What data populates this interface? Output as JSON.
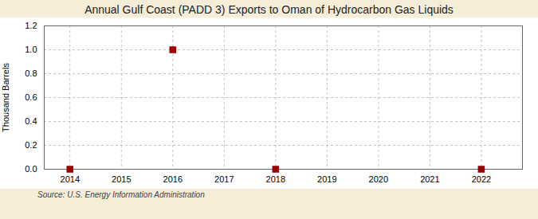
{
  "chart_data": {
    "type": "scatter",
    "title": "Annual Gulf Coast (PADD 3) Exports to Oman of Hydrocarbon Gas Liquids",
    "ylabel": "Thousand Barrels",
    "source": "Source: U.S. Energy Information Administration",
    "x": [
      2014,
      2016,
      2018,
      2022
    ],
    "values": [
      0.0,
      1.0,
      0.0,
      0.0
    ],
    "color": "#990000",
    "marker": "square",
    "xlim": [
      2013.5,
      2022.8
    ],
    "ylim": [
      0.0,
      1.2
    ],
    "xticks": [
      2014,
      2015,
      2016,
      2017,
      2018,
      2019,
      2020,
      2021,
      2022
    ],
    "yticks": [
      {
        "value": 0.0,
        "label": "0.0"
      },
      0.2,
      0.4,
      0.6,
      0.8,
      {
        "value": 1.0,
        "label": "1.0"
      },
      1.2
    ],
    "grid": true
  }
}
